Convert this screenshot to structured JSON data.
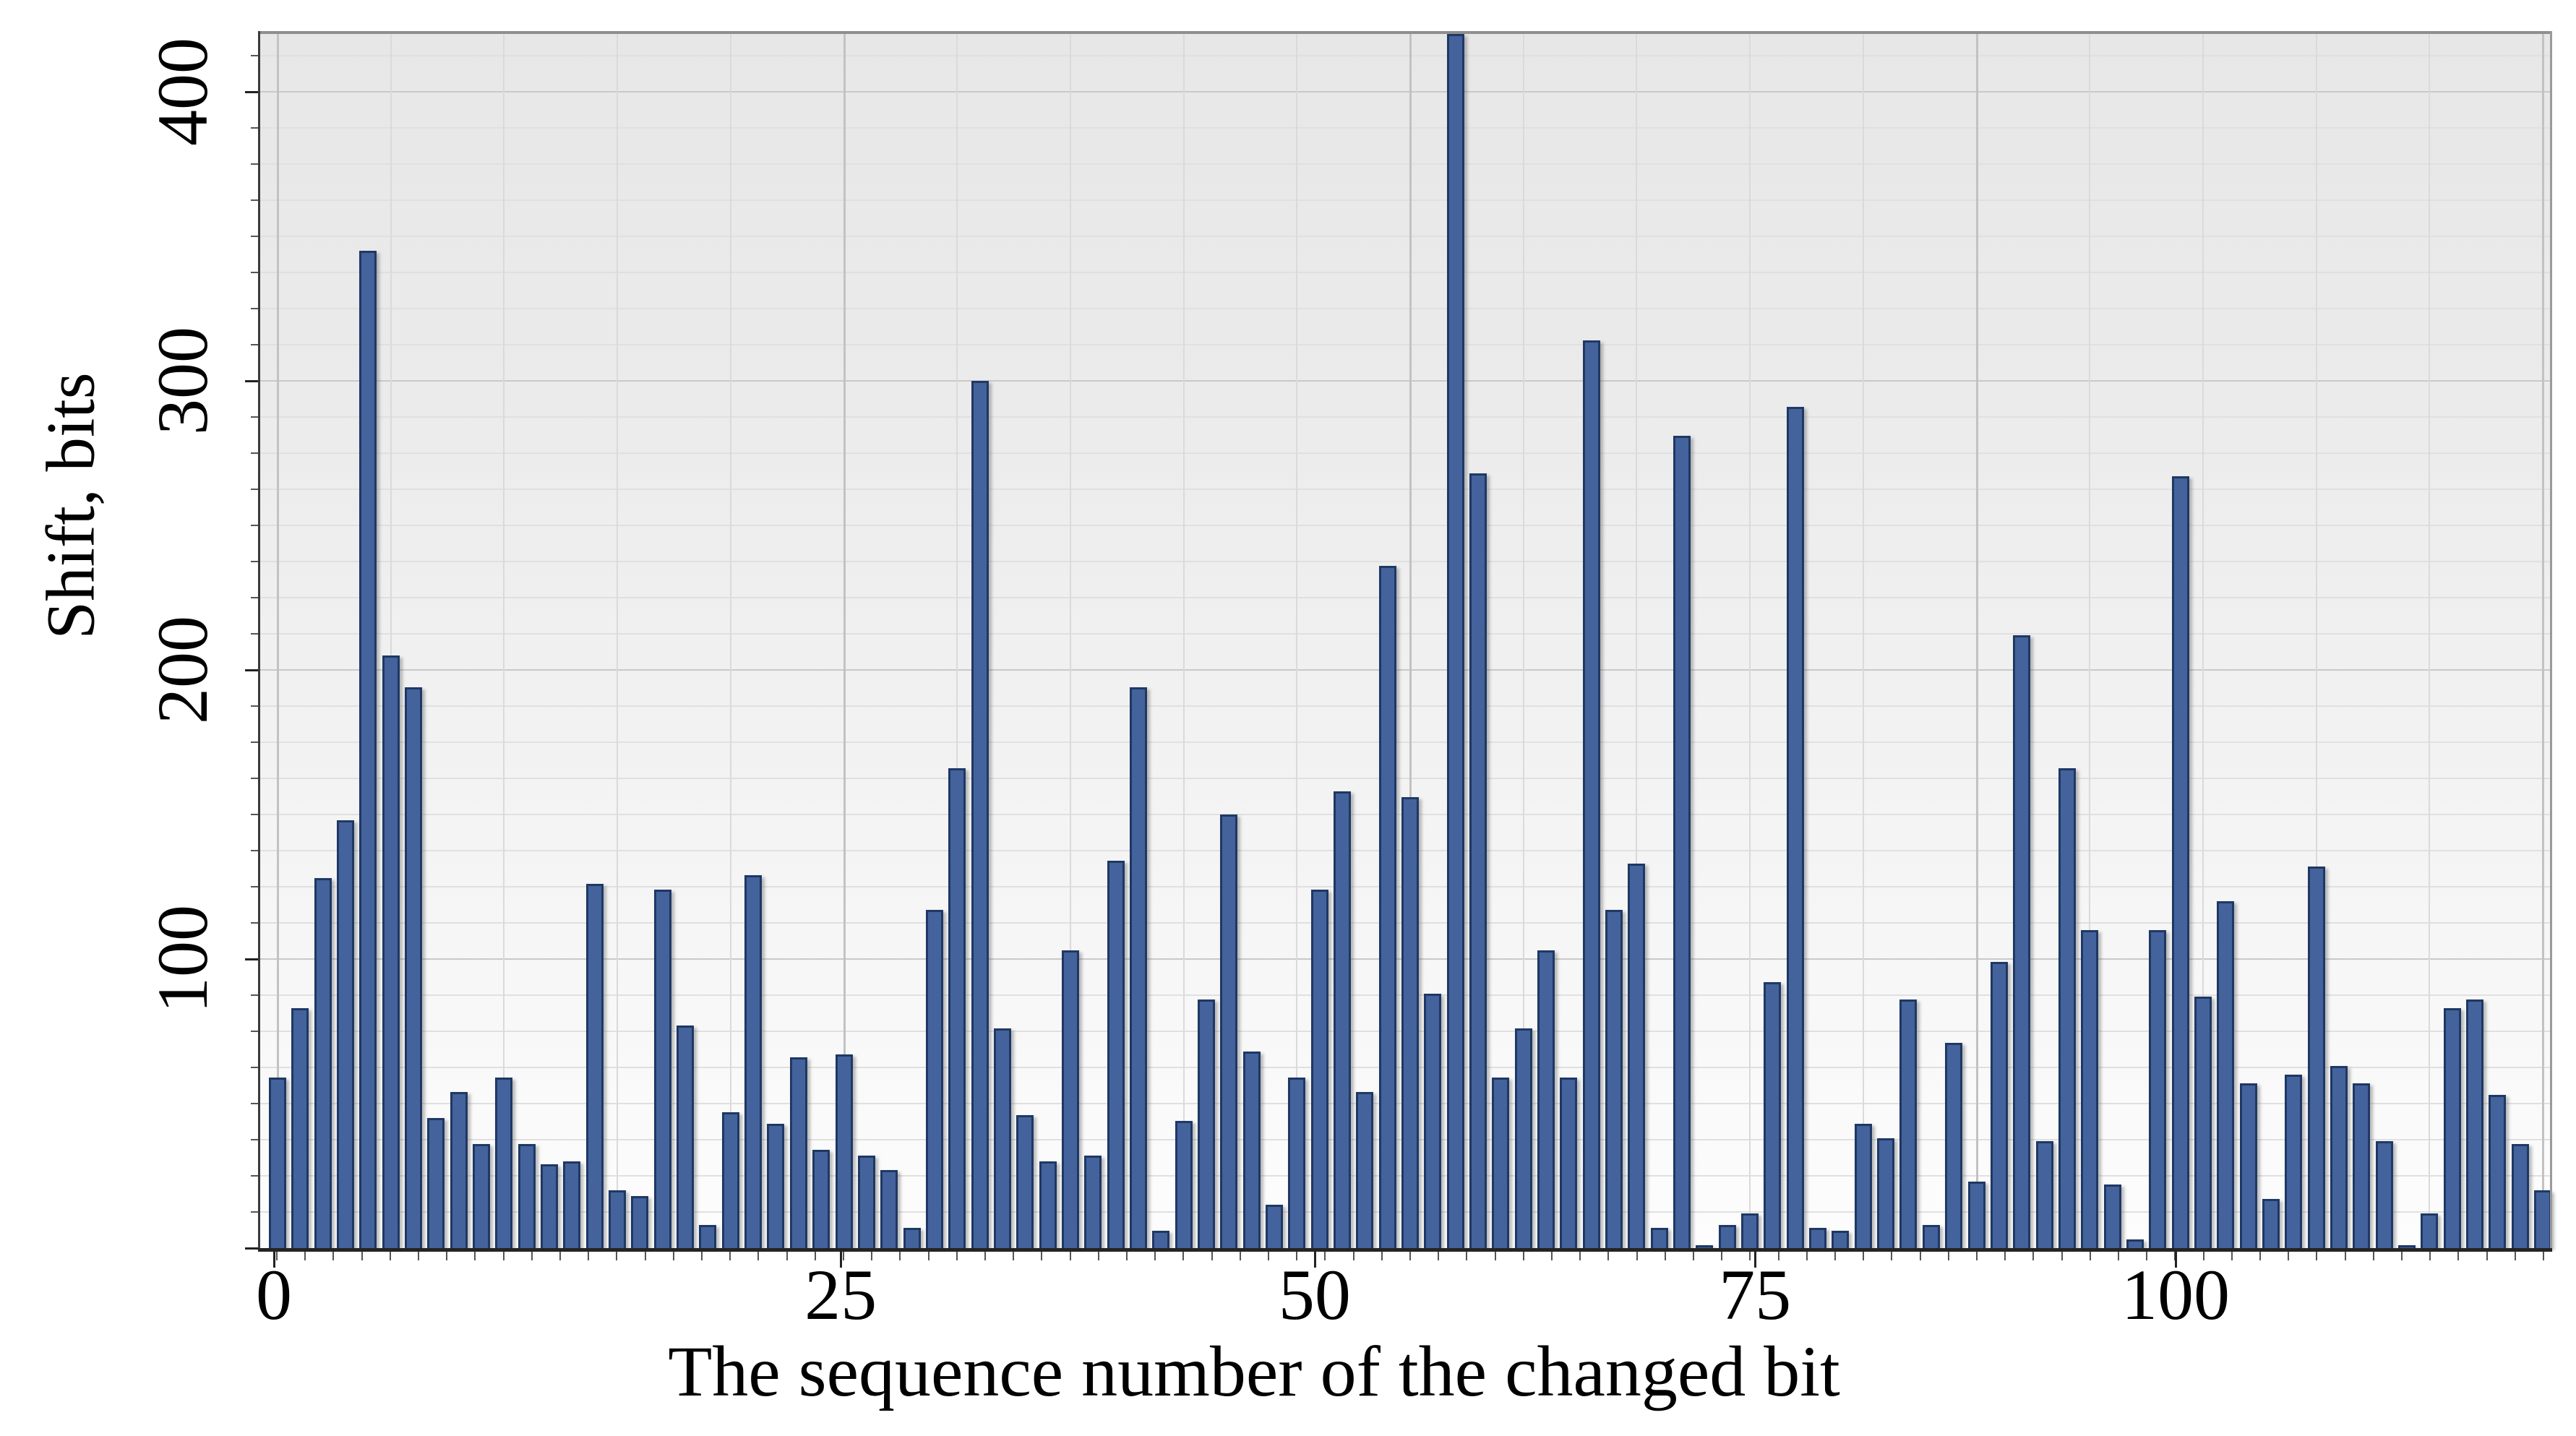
{
  "chart_data": {
    "type": "bar",
    "title": "",
    "xlabel": "The sequence number of the changed bit",
    "ylabel": "Shift, bits",
    "categories": [
      0,
      1,
      2,
      3,
      4,
      5,
      6,
      7,
      8,
      9,
      10,
      11,
      12,
      13,
      14,
      15,
      16,
      17,
      18,
      19,
      20,
      21,
      22,
      23,
      24,
      25,
      26,
      27,
      28,
      29,
      30,
      31,
      32,
      33,
      34,
      35,
      36,
      37,
      38,
      39,
      40,
      41,
      42,
      43,
      44,
      45,
      46,
      47,
      48,
      49,
      50,
      51,
      52,
      53,
      54,
      55,
      56,
      57,
      58,
      59,
      60,
      61,
      62,
      63,
      64,
      65,
      66,
      67,
      68,
      69,
      70,
      71,
      72,
      73,
      74,
      75,
      76,
      77,
      78,
      79,
      80,
      81,
      82,
      83,
      84,
      85,
      86,
      87,
      88,
      89,
      90,
      91,
      92,
      93,
      94,
      95,
      96,
      97,
      98,
      99,
      100
    ],
    "values": [
      59,
      83,
      128,
      148,
      345,
      205,
      194,
      45,
      54,
      36,
      59,
      36,
      29,
      30,
      126,
      20,
      18,
      124,
      77,
      8,
      47,
      129,
      43,
      66,
      34,
      67,
      32,
      27,
      7,
      117,
      166,
      300,
      76,
      46,
      30,
      103,
      32,
      134,
      194,
      6,
      44,
      86,
      150,
      68,
      15,
      59,
      124,
      158,
      54,
      236,
      156,
      88,
      420,
      268,
      59,
      76,
      103,
      59,
      314,
      117,
      133,
      7,
      281,
      1,
      8,
      12,
      92,
      291,
      7,
      6,
      43,
      38,
      86,
      8,
      71,
      23,
      99,
      212,
      37,
      166,
      110,
      22,
      3,
      110,
      267,
      87,
      120,
      57,
      17,
      60,
      132,
      63,
      57,
      37,
      1,
      12,
      83,
      86,
      53,
      36,
      20
    ],
    "ylim": [
      0,
      420
    ],
    "yticks": [
      100,
      200,
      300,
      400
    ],
    "xticks": [
      {
        "label": "0",
        "pct": 0.6
      },
      {
        "label": "25",
        "pct": 25.35
      },
      {
        "label": "50",
        "pct": 46.05
      },
      {
        "label": "75",
        "pct": 65.28
      },
      {
        "label": "100",
        "pct": 83.65
      }
    ],
    "bar_color": "#44639C",
    "bar_border_color": "#1F3864",
    "plot_bg_top": "#e7e7e7",
    "plot_bg_bottom": "#fdfdfd",
    "grid": "on",
    "legend": "none",
    "layout": {
      "minor_y_step": 12.5,
      "major_y_step": 100,
      "vertical_grid_every_bars": 5,
      "vertical_grid_major_every_bars": 25,
      "y_axis_labels_rotated": true
    }
  }
}
